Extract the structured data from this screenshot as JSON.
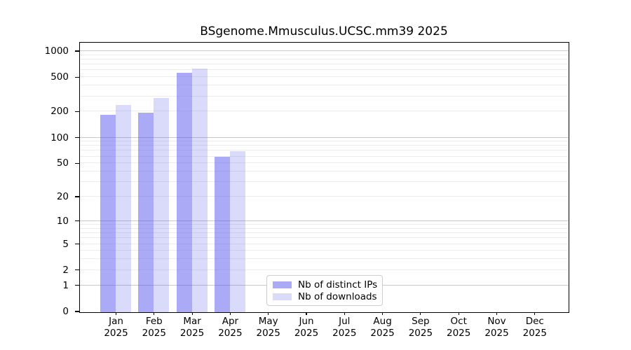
{
  "chart_data": {
    "type": "bar",
    "title": "BSgenome.Mmusculus.UCSC.mm39 2025",
    "x_categories": [
      "Jan",
      "Feb",
      "Mar",
      "Apr",
      "May",
      "Jun",
      "Jul",
      "Aug",
      "Sep",
      "Oct",
      "Nov",
      "Dec"
    ],
    "x_year": "2025",
    "series": [
      {
        "name": "Nb of distinct IPs",
        "fill": "rgba(85,85,238,0.50)",
        "solid_hex": "#aaaaf2",
        "values": [
          185,
          195,
          570,
          60,
          null,
          null,
          null,
          null,
          null,
          null,
          null,
          null
        ]
      },
      {
        "name": "Nb of downloads",
        "fill": "rgba(85,85,238,0.22)",
        "solid_hex": "#d9d9f8",
        "values": [
          240,
          290,
          640,
          70,
          null,
          null,
          null,
          null,
          null,
          null,
          null,
          null
        ]
      }
    ],
    "y_ticks": [
      0,
      1,
      2,
      5,
      10,
      20,
      50,
      100,
      200,
      500,
      1000
    ],
    "y_scale": "log1p",
    "y_max": 1250,
    "ylim": [
      0,
      1250
    ],
    "xlabel": "",
    "ylabel": "",
    "grid": true,
    "legend_position": "lower-center",
    "colors": {
      "grid_minor": "#ececec",
      "grid_major": "#c9c9c9",
      "axis": "#000000",
      "text": "#000000",
      "background": "#ffffff"
    }
  }
}
